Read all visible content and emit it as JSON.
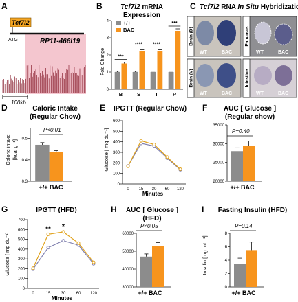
{
  "panels": {
    "A": {
      "letter": "A",
      "gene_label": "Tcf7l2",
      "atg_label": "ATG",
      "bac_label": "RP11-466I19",
      "scale_label": "100kb",
      "colors": {
        "gene_box": "#f6a623",
        "bac_region": "#f4c6cf",
        "signal": "#8a2232"
      }
    },
    "B": {
      "letter": "B",
      "title_italic": "Tcf7l2",
      "title_rest": " mRNA",
      "title_line2": "Expression",
      "ylabel": "Fold Change"
    },
    "C": {
      "letter": "C",
      "title_italic": "Tcf7l2",
      "title_rest": " RNA ",
      "title_italic2": "In Situ",
      "title_end": " Hybridization",
      "tiles": [
        {
          "name": "Brain (D)",
          "left": "WT",
          "right": "BAC"
        },
        {
          "name": "Pancreas",
          "left": "WT",
          "right": "BAC"
        },
        {
          "name": "Brain (V)",
          "left": "WT",
          "right": "BAC"
        },
        {
          "name": "Intestine",
          "left": "WT",
          "right": "BAC"
        }
      ]
    },
    "D": {
      "letter": "D",
      "title_line1": "Caloric Intake",
      "title_line2": "(Regular Chow)",
      "ylabel_line1": "Caloric intake",
      "ylabel_line2": "[kcal g⁻¹]",
      "pvalue": "P<0.01",
      "xlabel": "+/+ BAC"
    },
    "E": {
      "letter": "E",
      "title": "IPGTT (Regular Chow)",
      "ylabel": "Glucose [ mg dL⁻¹]",
      "xlabel": "Minutes"
    },
    "F": {
      "letter": "F",
      "title_line1": "AUC [ Glucose ]",
      "title_line2": "(Regular chow)",
      "pvalue": "P=0.40",
      "xlabel": "+/+ BAC"
    },
    "G": {
      "letter": "G",
      "title": "IPGTT (HFD)",
      "ylabel": "Glucose [ mg dL⁻¹]",
      "xlabel": "Minutes"
    },
    "H": {
      "letter": "H",
      "title_line1": "AUC [ Glucose ]",
      "title_line2": "(HFD)",
      "pvalue": "P<0.05",
      "xlabel": "+/+ BAC"
    },
    "I": {
      "letter": "I",
      "title": "Fasting Insulin (HFD)",
      "ylabel": "Insulin [ ng mL⁻¹]",
      "pvalue": "P=0.14",
      "xlabel": "+/+ BAC"
    }
  },
  "colors": {
    "wt": "#8c8c8c",
    "bac": "#f7941d",
    "wt_line": "#7f7fae",
    "bac_line": "#e0a21c"
  },
  "chart_data": [
    {
      "id": "B",
      "type": "bar",
      "categories": [
        "B",
        "S",
        "I",
        "P"
      ],
      "series": [
        {
          "name": "+/+",
          "values": [
            1.0,
            1.0,
            1.0,
            1.0
          ],
          "errors": [
            0.05,
            0.05,
            0.05,
            0.05
          ]
        },
        {
          "name": "BAC",
          "values": [
            1.5,
            2.2,
            2.2,
            3.4
          ],
          "errors": [
            0.08,
            0.1,
            0.1,
            0.12
          ]
        }
      ],
      "significance": [
        "***",
        "****",
        "****",
        "***"
      ],
      "ylim": [
        0,
        4
      ],
      "yticks": [
        0,
        1,
        2,
        3,
        4
      ],
      "legend": "top-left"
    },
    {
      "id": "D",
      "type": "bar",
      "categories": [
        "+/+",
        "BAC"
      ],
      "values": [
        0.47,
        0.435
      ],
      "errors": [
        0.01,
        0.008
      ],
      "ylim": [
        0.3,
        0.55
      ],
      "yticks": [
        0.3,
        0.4,
        0.5
      ]
    },
    {
      "id": "E",
      "type": "line",
      "x": [
        0,
        15,
        30,
        60,
        120
      ],
      "xticks": [
        "0",
        "15",
        "30",
        "60",
        "120"
      ],
      "series": [
        {
          "name": "+/+",
          "values": [
            170,
            385,
            360,
            245,
            135
          ]
        },
        {
          "name": "BAC",
          "values": [
            168,
            410,
            375,
            255,
            140
          ]
        }
      ],
      "ylim": [
        0,
        600
      ],
      "yticks": [
        0,
        100,
        200,
        300,
        400,
        500,
        600
      ]
    },
    {
      "id": "F",
      "type": "bar",
      "categories": [
        "+/+",
        "BAC"
      ],
      "values": [
        28000,
        29400
      ],
      "errors": [
        900,
        1300
      ],
      "ylim": [
        20000,
        35000
      ],
      "yticks": [
        20000,
        25000,
        30000,
        35000
      ]
    },
    {
      "id": "G",
      "type": "line",
      "x": [
        0,
        15,
        30,
        60,
        120
      ],
      "xticks": [
        "0",
        "15",
        "30",
        "60",
        "120"
      ],
      "series": [
        {
          "name": "+/+",
          "values": [
            195,
            415,
            485,
            440,
            250
          ]
        },
        {
          "name": "BAC",
          "values": [
            205,
            550,
            575,
            460,
            265
          ]
        }
      ],
      "significance": [
        {
          "x": 15,
          "label": "**"
        },
        {
          "x": 30,
          "label": "*"
        }
      ],
      "ylim": [
        0,
        700
      ],
      "yticks": [
        0,
        100,
        200,
        300,
        400,
        500,
        600,
        700
      ]
    },
    {
      "id": "H",
      "type": "bar",
      "categories": [
        "+/+",
        "BAC"
      ],
      "values": [
        47000,
        52800
      ],
      "errors": [
        1500,
        2000
      ],
      "ylim": [
        30000,
        60000
      ],
      "yticks": [
        30000,
        40000,
        50000,
        60000
      ]
    },
    {
      "id": "I",
      "type": "bar",
      "categories": [
        "+/+",
        "BAC"
      ],
      "values": [
        3.4,
        5.5
      ],
      "errors": [
        0.9,
        1.2
      ],
      "ylim": [
        0,
        8
      ],
      "yticks": [
        0,
        2,
        4,
        6,
        8
      ]
    }
  ]
}
